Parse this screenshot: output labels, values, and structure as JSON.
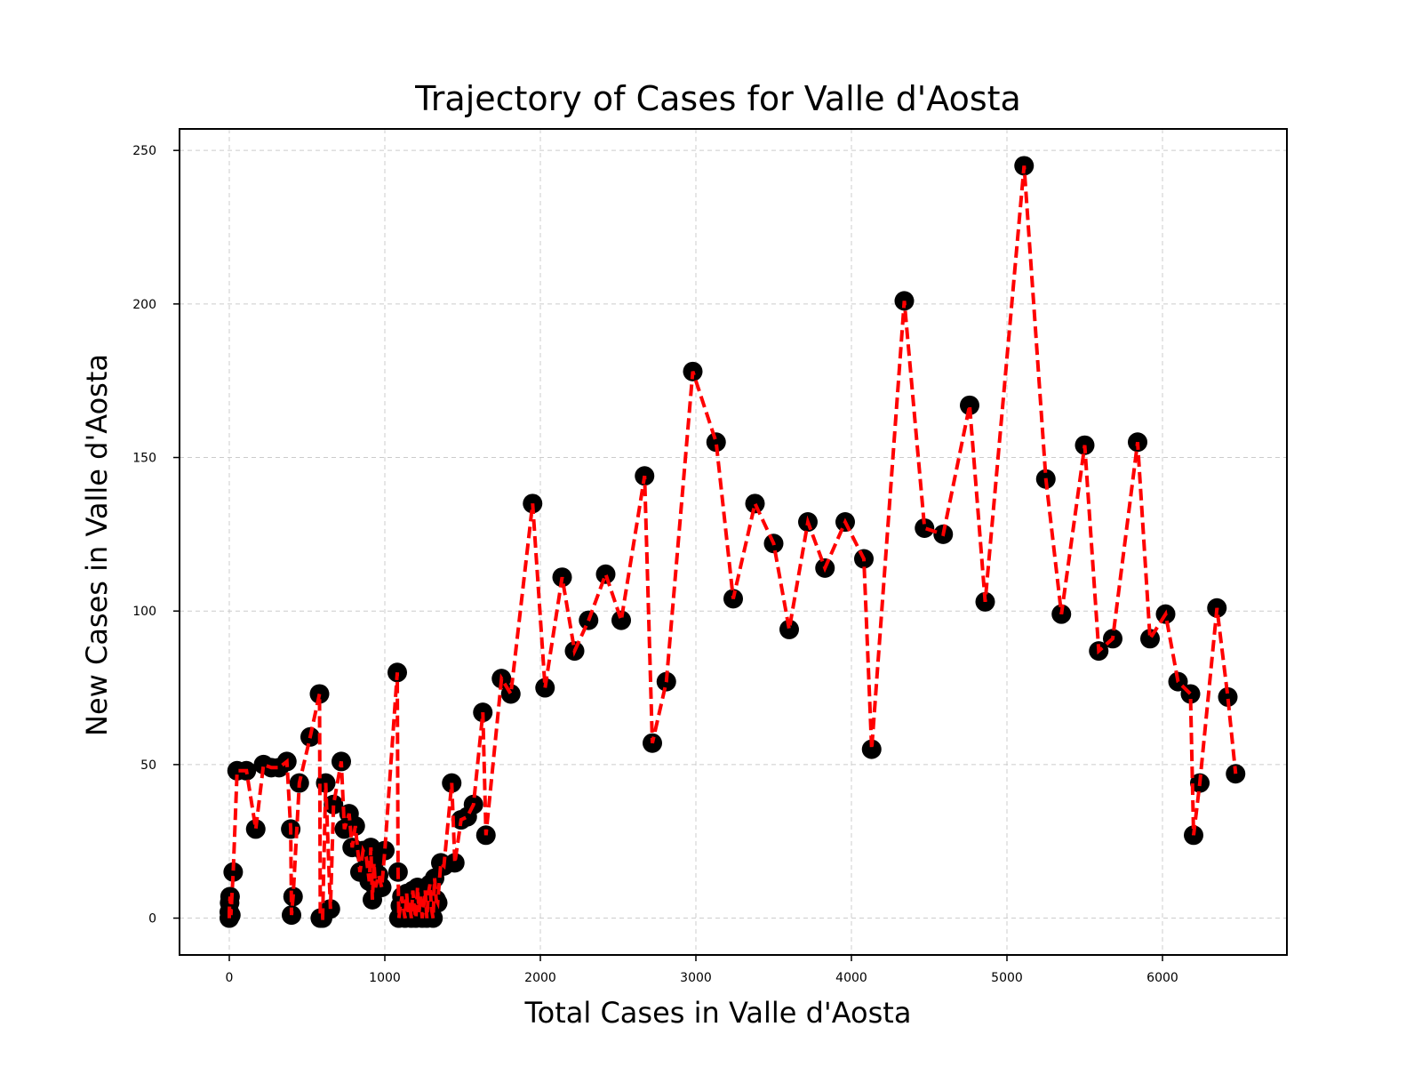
{
  "chart_data": {
    "type": "scatter",
    "title": "Trajectory of Cases for Valle d'Aosta",
    "xlabel": "Total Cases in Valle d'Aosta",
    "ylabel": "New Cases in Valle d'Aosta",
    "xlim": [
      -320,
      6800
    ],
    "ylim": [
      -12,
      257
    ],
    "xticks": [
      0,
      1000,
      2000,
      3000,
      4000,
      5000,
      6000
    ],
    "yticks": [
      0,
      50,
      100,
      150,
      200,
      250
    ],
    "grid": true,
    "colors": {
      "line": "#ff0000",
      "marker": "#000000"
    },
    "series": [
      {
        "x": [
          0,
          0,
          2,
          5,
          10,
          25,
          50,
          110,
          170,
          220,
          270,
          320,
          370,
          395,
          400,
          410,
          450,
          520,
          580,
          585,
          600,
          620,
          650,
          670,
          720,
          740,
          770,
          790,
          810,
          840,
          860,
          880,
          900,
          910,
          920,
          930,
          940,
          960,
          980,
          1000,
          1080,
          1085,
          1090,
          1100,
          1110,
          1120,
          1130,
          1140,
          1150,
          1160,
          1170,
          1180,
          1190,
          1200,
          1210,
          1220,
          1230,
          1240,
          1250,
          1260,
          1270,
          1280,
          1290,
          1300,
          1310,
          1320,
          1330,
          1340,
          1360,
          1380,
          1430,
          1450,
          1490,
          1530,
          1570,
          1630,
          1650,
          1750,
          1810,
          1950,
          2030,
          2140,
          2220,
          2310,
          2420,
          2520,
          2670,
          2720,
          2810,
          2980,
          3130,
          3240,
          3380,
          3500,
          3600,
          3720,
          3830,
          3960,
          4080,
          4130,
          4340,
          4470,
          4590,
          4760,
          4860,
          5110,
          5250,
          5350,
          5500,
          5590,
          5680,
          5840,
          5920,
          6020,
          6100,
          6180,
          6200,
          6240,
          6350,
          6420,
          6470
        ],
        "y": [
          0,
          2,
          5,
          7,
          1,
          15,
          48,
          48,
          29,
          50,
          49,
          49,
          51,
          29,
          1,
          7,
          44,
          59,
          73,
          0,
          0,
          44,
          3,
          37,
          51,
          29,
          34,
          23,
          30,
          15,
          22,
          20,
          12,
          23,
          6,
          18,
          10,
          14,
          10,
          22,
          80,
          15,
          0,
          4,
          7,
          3,
          0,
          8,
          2,
          5,
          0,
          9,
          3,
          0,
          10,
          2,
          7,
          0,
          4,
          9,
          0,
          8,
          11,
          3,
          0,
          13,
          6,
          5,
          18,
          17,
          44,
          18,
          32,
          33,
          37,
          67,
          27,
          78,
          73,
          135,
          75,
          111,
          87,
          97,
          112,
          97,
          144,
          57,
          77,
          178,
          155,
          104,
          135,
          122,
          94,
          129,
          114,
          129,
          117,
          55,
          201,
          127,
          125,
          167,
          103,
          245,
          143,
          99,
          154,
          87,
          91,
          155,
          91,
          99,
          77,
          73,
          27,
          44,
          101,
          72,
          47
        ]
      }
    ]
  }
}
